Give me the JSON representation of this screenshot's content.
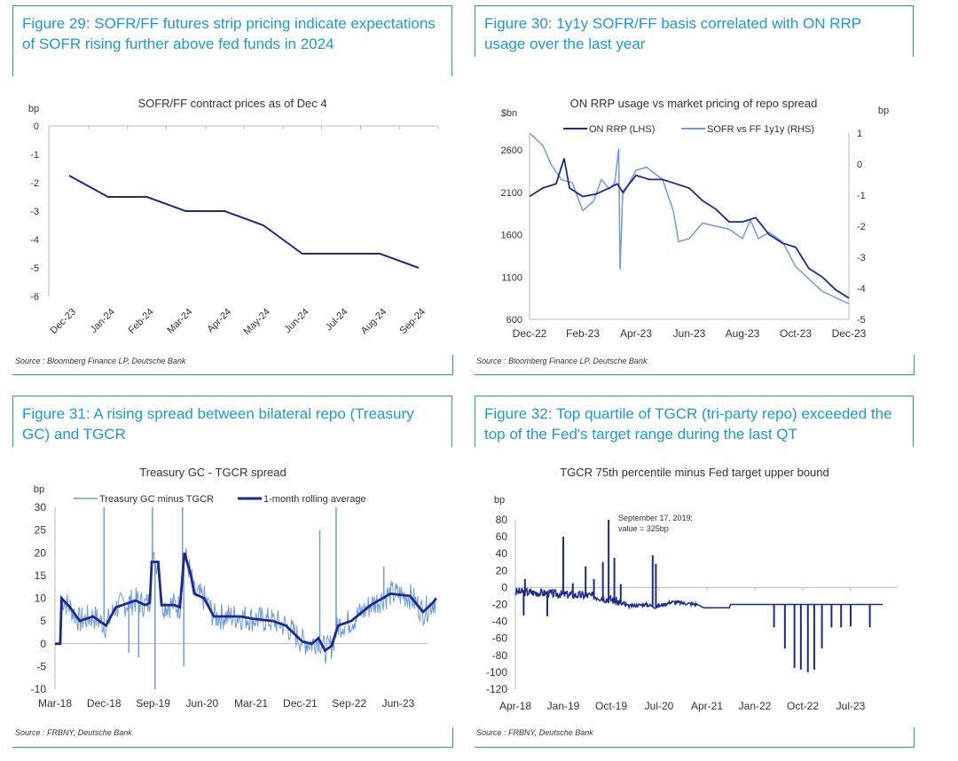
{
  "colors": {
    "accent": "#1a9ad6",
    "dark": "#1b2a8c",
    "light": "#6f9be0"
  },
  "figures": [
    {
      "title": "Figure 29: SOFR/FF futures strip pricing indicate expectations of SOFR rising further above fed funds in 2024",
      "source": "Source : Bloomberg Finance LP, Deutsche Bank"
    },
    {
      "title": "Figure 30: 1y1y SOFR/FF basis correlated with ON RRP usage over the last year",
      "source": "Source : Bloomberg Finance LP, Deutsche Bank"
    },
    {
      "title": "Figure 31: A rising spread between bilateral repo (Treasury GC) and TGCR",
      "source": "Source : FRBNY, Deutsche Bank"
    },
    {
      "title": "Figure 32: Top quartile of TGCR (tri-party repo) exceeded the top of the Fed's target range during the last QT",
      "source": "Source : FRBNY, Deutsche Bank"
    }
  ],
  "chart_data": [
    {
      "type": "line",
      "title": "SOFR/FF contract prices as of Dec 4",
      "ylabel": "bp",
      "ylim": [
        -6,
        0
      ],
      "yticks": [
        "0",
        "-1",
        "-2",
        "-3",
        "-4",
        "-5",
        "-6"
      ],
      "categories": [
        "Dec-23",
        "Jan-24",
        "Feb-24",
        "Mar-24",
        "Apr-24",
        "May-24",
        "Jun-24",
        "Jul-24",
        "Aug-24",
        "Sep-24"
      ],
      "values": [
        -1.75,
        -2.5,
        -2.5,
        -3,
        -3,
        -3.5,
        -4.5,
        -4.5,
        -4.5,
        -5
      ]
    },
    {
      "type": "line",
      "title": "ON RRP usage vs market pricing of repo spread",
      "ylabel": "$bn",
      "y2label": "bp",
      "ylim": [
        600,
        2600
      ],
      "y2lim": [
        -5,
        1
      ],
      "yticks": [
        "600",
        "1100",
        "1600",
        "2100",
        "2600"
      ],
      "y2ticks": [
        "-5",
        "-4",
        "-3",
        "-2",
        "-1",
        "0",
        "1"
      ],
      "xticks": [
        "Dec-22",
        "Feb-23",
        "Apr-23",
        "Jun-23",
        "Aug-23",
        "Oct-23",
        "Dec-23"
      ],
      "series": [
        {
          "name": "ON RRP (LHS)",
          "axis": "left",
          "points": [
            [
              0,
              2050
            ],
            [
              0.5,
              2150
            ],
            [
              1,
              2200
            ],
            [
              1.3,
              2500
            ],
            [
              1.5,
              2150
            ],
            [
              2,
              2050
            ],
            [
              2.5,
              2080
            ],
            [
              3,
              2150
            ],
            [
              3.3,
              2200
            ],
            [
              3.5,
              2100
            ],
            [
              4,
              2300
            ],
            [
              4.5,
              2250
            ],
            [
              5,
              2250
            ],
            [
              5.5,
              2200
            ],
            [
              6,
              2150
            ],
            [
              6.5,
              2000
            ],
            [
              7,
              1900
            ],
            [
              7.5,
              1750
            ],
            [
              8,
              1750
            ],
            [
              8.5,
              1800
            ],
            [
              9,
              1600
            ],
            [
              9.5,
              1500
            ],
            [
              10,
              1450
            ],
            [
              10.5,
              1200
            ],
            [
              11,
              1100
            ],
            [
              11.5,
              950
            ],
            [
              12,
              850
            ]
          ]
        },
        {
          "name": "SOFR vs FF 1y1y (RHS)",
          "axis": "right",
          "points": [
            [
              0,
              1.0
            ],
            [
              0.5,
              0.6
            ],
            [
              0.8,
              0
            ],
            [
              1.2,
              -0.5
            ],
            [
              1.6,
              -0.6
            ],
            [
              2,
              -1.5
            ],
            [
              2.4,
              -1.2
            ],
            [
              2.7,
              -0.5
            ],
            [
              3,
              -0.8
            ],
            [
              3.2,
              -0.6
            ],
            [
              3.35,
              0.5
            ],
            [
              3.4,
              -3.4
            ],
            [
              3.5,
              -1
            ],
            [
              4,
              -0.2
            ],
            [
              4.4,
              -0.1
            ],
            [
              5,
              -0.5
            ],
            [
              5.4,
              -1.5
            ],
            [
              5.6,
              -2.5
            ],
            [
              6,
              -2.4
            ],
            [
              6.5,
              -1.9
            ],
            [
              7,
              -2.0
            ],
            [
              7.5,
              -2.1
            ],
            [
              8,
              -2.4
            ],
            [
              8.3,
              -1.8
            ],
            [
              8.6,
              -2.4
            ],
            [
              9,
              -2.2
            ],
            [
              9.5,
              -2.5
            ],
            [
              10,
              -3.3
            ],
            [
              10.5,
              -3.7
            ],
            [
              11,
              -4.1
            ],
            [
              11.5,
              -4.3
            ],
            [
              12,
              -4.5
            ]
          ]
        }
      ]
    },
    {
      "type": "line",
      "title": "Treasury GC - TGCR spread",
      "ylabel": "bp",
      "ylim": [
        -10,
        30
      ],
      "yticks": [
        "30",
        "25",
        "20",
        "15",
        "10",
        "5",
        "0",
        "-5",
        "-10"
      ],
      "xticks": [
        "Mar-18",
        "Dec-18",
        "Sep-19",
        "Jun-20",
        "Mar-21",
        "Dec-21",
        "Sep-22",
        "Jun-23"
      ],
      "series": [
        {
          "name": "Treasury GC minus TGCR",
          "spikes": [
            [
              2018.92,
              30
            ],
            [
              2019.66,
              30
            ],
            [
              2019.7,
              -10
            ],
            [
              2020.12,
              30
            ],
            [
              2020.14,
              -5
            ],
            [
              2019.45,
              -3
            ],
            [
              2019.3,
              -2
            ],
            [
              2022.22,
              25
            ],
            [
              2022.47,
              30
            ],
            [
              2023.2,
              17
            ]
          ]
        },
        {
          "name": "1-month rolling average",
          "points": [
            [
              2018.17,
              0
            ],
            [
              2018.25,
              0
            ],
            [
              2018.27,
              10
            ],
            [
              2018.4,
              8
            ],
            [
              2018.55,
              5
            ],
            [
              2018.75,
              6
            ],
            [
              2018.95,
              4
            ],
            [
              2019.1,
              8
            ],
            [
              2019.4,
              9.5
            ],
            [
              2019.55,
              8.5
            ],
            [
              2019.62,
              9
            ],
            [
              2019.65,
              18
            ],
            [
              2019.75,
              18
            ],
            [
              2019.8,
              8.5
            ],
            [
              2020.0,
              8.5
            ],
            [
              2020.08,
              8
            ],
            [
              2020.15,
              20
            ],
            [
              2020.25,
              15
            ],
            [
              2020.3,
              11
            ],
            [
              2020.45,
              10
            ],
            [
              2020.6,
              6
            ],
            [
              2021.0,
              6
            ],
            [
              2021.2,
              5.5
            ],
            [
              2021.5,
              5
            ],
            [
              2021.7,
              4
            ],
            [
              2021.95,
              0.5
            ],
            [
              2022.1,
              0
            ],
            [
              2022.2,
              1.2
            ],
            [
              2022.3,
              -1.5
            ],
            [
              2022.4,
              -0.5
            ],
            [
              2022.5,
              4
            ],
            [
              2022.7,
              5
            ],
            [
              2023.0,
              8.5
            ],
            [
              2023.3,
              11
            ],
            [
              2023.6,
              10.5
            ],
            [
              2023.8,
              7
            ],
            [
              2023.95,
              9
            ],
            [
              2024.0,
              10
            ]
          ]
        }
      ]
    },
    {
      "type": "line",
      "title": "TGCR 75th percentile minus Fed target upper bound",
      "ylabel": "bp",
      "ylim": [
        -120,
        80
      ],
      "yticks": [
        "80",
        "60",
        "40",
        "20",
        "0",
        "-20",
        "-40",
        "-60",
        "-80",
        "-100",
        "-120"
      ],
      "xticks": [
        "Apr-18",
        "Jan-19",
        "Oct-19",
        "Jul-20",
        "Apr-21",
        "Jan-22",
        "Oct-22",
        "Jul-23"
      ],
      "annotation": [
        "September 17, 2019;",
        "value = 325bp"
      ],
      "series": [
        {
          "name": "TGCR 75th percentile minus Fed target upper bound",
          "points": [
            [
              2018.25,
              -5
            ],
            [
              2018.6,
              -6
            ],
            [
              2019.0,
              -8
            ],
            [
              2019.5,
              -10
            ],
            [
              2019.8,
              -15
            ],
            [
              2020.0,
              -22
            ],
            [
              2020.3,
              -20
            ],
            [
              2020.45,
              -23
            ],
            [
              2020.7,
              -17
            ],
            [
              2021.1,
              -20
            ],
            [
              2021.2,
              -24
            ],
            [
              2021.6,
              -24
            ],
            [
              2021.62,
              -20
            ],
            [
              2024.0,
              -20
            ]
          ],
          "spikes": [
            [
              2018.4,
              10
            ],
            [
              2018.38,
              -33
            ],
            [
              2018.75,
              -34
            ],
            [
              2019.0,
              60
            ],
            [
              2019.35,
              25
            ],
            [
              2019.15,
              5
            ],
            [
              2019.48,
              10
            ],
            [
              2019.62,
              30
            ],
            [
              2019.71,
              80
            ],
            [
              2019.8,
              35
            ],
            [
              2019.9,
              4
            ],
            [
              2020.4,
              38
            ],
            [
              2020.45,
              28
            ],
            [
              2022.3,
              -47
            ],
            [
              2022.47,
              -72
            ],
            [
              2022.62,
              -95
            ],
            [
              2022.72,
              -97
            ],
            [
              2022.83,
              -100
            ],
            [
              2022.93,
              -97
            ],
            [
              2023.05,
              -72
            ],
            [
              2023.2,
              -47
            ],
            [
              2023.35,
              -47
            ],
            [
              2023.5,
              -46
            ],
            [
              2023.8,
              -47
            ]
          ]
        }
      ]
    }
  ]
}
